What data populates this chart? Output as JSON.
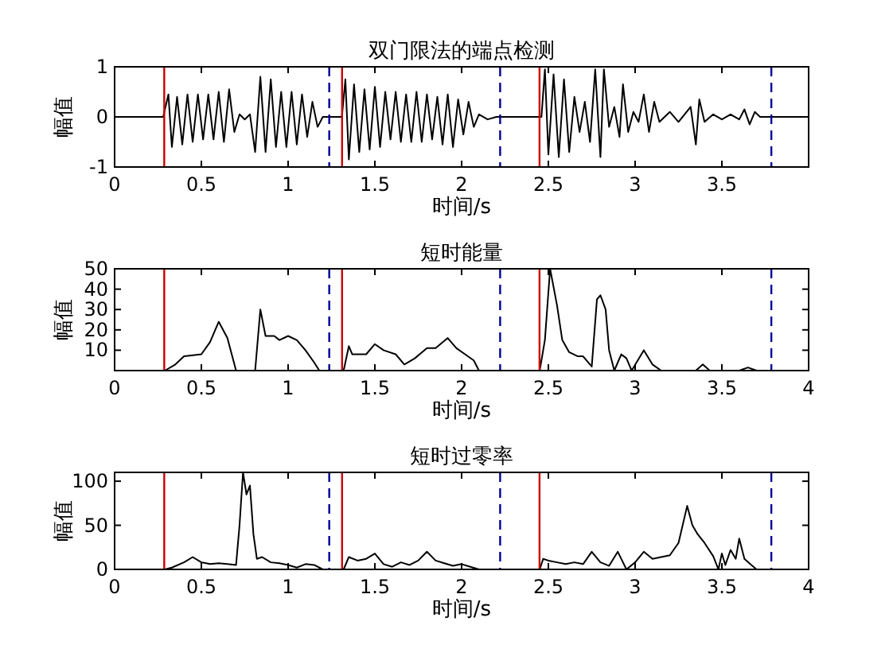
{
  "chart_data": [
    {
      "type": "line",
      "title": "双门限法的端点检测",
      "xlabel": "时间/s",
      "ylabel": "幅值",
      "xlim": [
        0,
        4
      ],
      "ylim": [
        -1,
        1
      ],
      "xticks": [
        0,
        0.5,
        1,
        1.5,
        2,
        2.5,
        3,
        3.5
      ],
      "yticks": [
        -1,
        0,
        1
      ],
      "series": [
        {
          "color": "#000000",
          "x": [
            0,
            0.28,
            0.31,
            0.33,
            0.36,
            0.39,
            0.42,
            0.45,
            0.48,
            0.51,
            0.54,
            0.57,
            0.6,
            0.63,
            0.66,
            0.69,
            0.72,
            0.75,
            0.78,
            0.81,
            0.84,
            0.87,
            0.9,
            0.93,
            0.96,
            0.99,
            1.02,
            1.05,
            1.08,
            1.11,
            1.14,
            1.17,
            1.2,
            1.31,
            1.33,
            1.35,
            1.38,
            1.41,
            1.44,
            1.47,
            1.5,
            1.53,
            1.56,
            1.59,
            1.62,
            1.65,
            1.68,
            1.71,
            1.74,
            1.77,
            1.8,
            1.83,
            1.86,
            1.89,
            1.92,
            1.95,
            1.98,
            2.01,
            2.04,
            2.07,
            2.1,
            2.15,
            2.2,
            2.46,
            2.48,
            2.5,
            2.53,
            2.56,
            2.59,
            2.62,
            2.65,
            2.68,
            2.71,
            2.74,
            2.77,
            2.8,
            2.82,
            2.85,
            2.88,
            2.91,
            2.93,
            2.96,
            2.99,
            3.02,
            3.05,
            3.08,
            3.11,
            3.14,
            3.2,
            3.25,
            3.32,
            3.35,
            3.37,
            3.4,
            3.45,
            3.5,
            3.55,
            3.6,
            3.63,
            3.66,
            3.69,
            3.72,
            4
          ],
          "values": [
            0,
            0,
            0.45,
            -0.6,
            0.4,
            -0.55,
            0.45,
            -0.5,
            0.45,
            -0.45,
            0.45,
            -0.45,
            0.5,
            -0.5,
            0.55,
            -0.3,
            0.05,
            -0.05,
            0.05,
            -0.7,
            0.8,
            -0.7,
            0.75,
            -0.6,
            0.5,
            -0.6,
            0.5,
            -0.55,
            0.45,
            -0.4,
            0.3,
            -0.2,
            0,
            0,
            0.75,
            -0.85,
            0.65,
            -0.7,
            0.55,
            -0.65,
            0.6,
            -0.6,
            0.5,
            -0.45,
            0.5,
            -0.5,
            0.45,
            -0.5,
            0.5,
            -0.5,
            0.45,
            -0.45,
            0.4,
            -0.55,
            0.45,
            -0.6,
            0.35,
            -0.35,
            0.3,
            -0.2,
            0.05,
            -0.05,
            0,
            0,
            0.95,
            -0.75,
            0.85,
            -0.8,
            0.75,
            -0.7,
            0.4,
            -0.3,
            0.3,
            -0.5,
            0.95,
            -0.8,
            0.95,
            -0.2,
            0.2,
            -0.4,
            0.65,
            -0.3,
            0.1,
            -0.1,
            0.45,
            -0.3,
            0.3,
            -0.1,
            0.1,
            -0.1,
            0.2,
            -0.55,
            0.35,
            -0.1,
            0.05,
            -0.05,
            0.05,
            -0.05,
            0.15,
            -0.15,
            0.1,
            0,
            0
          ]
        }
      ],
      "ref_lines": [
        {
          "axis": "x",
          "value": 0.286,
          "color": "#cc0000",
          "line_style": "solid"
        },
        {
          "axis": "x",
          "value": 1.311,
          "color": "#cc0000",
          "line_style": "solid"
        },
        {
          "axis": "x",
          "value": 2.449,
          "color": "#cc0000",
          "line_style": "solid"
        },
        {
          "axis": "x",
          "value": 1.237,
          "color": "#000099",
          "line_style": "dashed"
        },
        {
          "axis": "x",
          "value": 2.222,
          "color": "#000099",
          "line_style": "dashed"
        },
        {
          "axis": "x",
          "value": 3.785,
          "color": "#000099",
          "line_style": "dashed"
        }
      ]
    },
    {
      "type": "line",
      "title": "短时能量",
      "xlabel": "时间/s",
      "ylabel": "幅值",
      "xlim": [
        0,
        4
      ],
      "ylim": [
        0,
        50
      ],
      "xticks": [
        0,
        0.5,
        1,
        1.5,
        2,
        2.5,
        3,
        3.5,
        4
      ],
      "yticks": [
        10,
        20,
        30,
        40,
        50
      ],
      "series": [
        {
          "color": "#000000",
          "x": [
            0,
            0.29,
            0.35,
            0.4,
            0.5,
            0.55,
            0.6,
            0.65,
            0.7,
            0.81,
            0.84,
            0.87,
            0.92,
            0.95,
            1.0,
            1.05,
            1.1,
            1.15,
            1.18,
            1.32,
            1.35,
            1.37,
            1.45,
            1.5,
            1.55,
            1.62,
            1.67,
            1.73,
            1.8,
            1.85,
            1.92,
            1.97,
            2.02,
            2.07,
            2.1,
            2.45,
            2.48,
            2.51,
            2.55,
            2.58,
            2.62,
            2.67,
            2.7,
            2.75,
            2.78,
            2.8,
            2.83,
            2.85,
            2.88,
            2.92,
            2.95,
            2.98,
            3.05,
            3.1,
            3.15,
            3.35,
            3.39,
            3.43,
            3.6,
            3.65,
            3.7,
            4
          ],
          "values": [
            0,
            0,
            3,
            7,
            8,
            14,
            24,
            16,
            0,
            0,
            30,
            17,
            17,
            15,
            17,
            15,
            10,
            4,
            0,
            0,
            12,
            8,
            8,
            13,
            10,
            8,
            3,
            6,
            11,
            11,
            16,
            11,
            8,
            5,
            0,
            0,
            15,
            50,
            32,
            15,
            9,
            7,
            7,
            2,
            35,
            37,
            30,
            10,
            0,
            8,
            6,
            0,
            10,
            3,
            0,
            0,
            3,
            0,
            0,
            1.5,
            0,
            0
          ]
        }
      ],
      "ref_lines": [
        {
          "axis": "x",
          "value": 0.286,
          "color": "#cc0000",
          "line_style": "solid"
        },
        {
          "axis": "x",
          "value": 1.311,
          "color": "#cc0000",
          "line_style": "solid"
        },
        {
          "axis": "x",
          "value": 2.449,
          "color": "#cc0000",
          "line_style": "solid"
        },
        {
          "axis": "x",
          "value": 1.237,
          "color": "#000099",
          "line_style": "dashed"
        },
        {
          "axis": "x",
          "value": 2.222,
          "color": "#000099",
          "line_style": "dashed"
        },
        {
          "axis": "x",
          "value": 3.785,
          "color": "#000099",
          "line_style": "dashed"
        }
      ]
    },
    {
      "type": "line",
      "title": "短时过零率",
      "xlabel": "时间/s",
      "ylabel": "幅值",
      "xlim": [
        0,
        4
      ],
      "ylim": [
        0,
        110
      ],
      "xticks": [
        0,
        0.5,
        1,
        1.5,
        2,
        2.5,
        3,
        3.5,
        4
      ],
      "yticks": [
        0,
        50,
        100
      ],
      "series": [
        {
          "color": "#000000",
          "x": [
            0,
            0.29,
            0.33,
            0.4,
            0.45,
            0.5,
            0.55,
            0.6,
            0.65,
            0.7,
            0.72,
            0.74,
            0.76,
            0.78,
            0.8,
            0.82,
            0.85,
            0.9,
            0.95,
            1.0,
            1.05,
            1.1,
            1.15,
            1.2,
            1.32,
            1.35,
            1.4,
            1.45,
            1.5,
            1.55,
            1.6,
            1.65,
            1.7,
            1.75,
            1.8,
            1.85,
            1.9,
            1.95,
            2.0,
            2.05,
            2.1,
            2.45,
            2.47,
            2.5,
            2.55,
            2.6,
            2.65,
            2.7,
            2.75,
            2.8,
            2.85,
            2.9,
            2.95,
            3.0,
            3.05,
            3.1,
            3.15,
            3.2,
            3.25,
            3.3,
            3.33,
            3.36,
            3.4,
            3.45,
            3.48,
            3.5,
            3.52,
            3.55,
            3.58,
            3.6,
            3.63,
            3.67,
            3.7,
            4
          ],
          "values": [
            0,
            0,
            2,
            8,
            14,
            8,
            6,
            7,
            6,
            5,
            50,
            110,
            85,
            95,
            40,
            12,
            14,
            8,
            7,
            5,
            2,
            6,
            5,
            0,
            0,
            14,
            10,
            12,
            18,
            6,
            3,
            8,
            5,
            10,
            20,
            10,
            7,
            4,
            6,
            3,
            0,
            0,
            12,
            10,
            8,
            6,
            8,
            6,
            20,
            8,
            4,
            20,
            0,
            8,
            20,
            12,
            14,
            16,
            30,
            72,
            50,
            40,
            30,
            15,
            0,
            18,
            5,
            22,
            12,
            35,
            12,
            5,
            0,
            0
          ]
        }
      ],
      "ref_lines": [
        {
          "axis": "x",
          "value": 0.286,
          "color": "#cc0000",
          "line_style": "solid"
        },
        {
          "axis": "x",
          "value": 1.311,
          "color": "#cc0000",
          "line_style": "solid"
        },
        {
          "axis": "x",
          "value": 2.449,
          "color": "#cc0000",
          "line_style": "solid"
        },
        {
          "axis": "x",
          "value": 1.237,
          "color": "#000099",
          "line_style": "dashed"
        },
        {
          "axis": "x",
          "value": 2.222,
          "color": "#000099",
          "line_style": "dashed"
        },
        {
          "axis": "x",
          "value": 3.785,
          "color": "#000099",
          "line_style": "dashed"
        }
      ]
    }
  ]
}
